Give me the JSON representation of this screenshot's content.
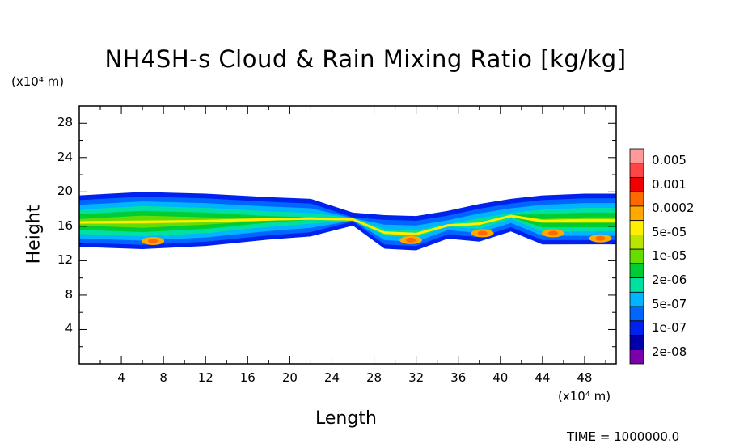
{
  "chart_data": {
    "type": "heatmap",
    "title": "NH4SH-s Cloud & Rain Mixing Ratio [kg/kg]",
    "xlabel": "Length",
    "ylabel": "Height",
    "x_unit": "(x10⁴ m)",
    "y_unit": "(x10⁴ m)",
    "xlim": [
      0,
      51
    ],
    "ylim": [
      0,
      30
    ],
    "x_ticks": [
      "4",
      "8",
      "12",
      "16",
      "20",
      "24",
      "28",
      "32",
      "36",
      "40",
      "44",
      "48"
    ],
    "y_ticks": [
      "4",
      "8",
      "12",
      "16",
      "20",
      "24",
      "28"
    ],
    "x_tick_values": [
      4,
      8,
      12,
      16,
      20,
      24,
      28,
      32,
      36,
      40,
      44,
      48
    ],
    "y_tick_values": [
      4,
      8,
      12,
      16,
      20,
      24,
      28
    ],
    "colorbar": {
      "labels": [
        "0.005",
        "0.001",
        "0.0002",
        "5e-05",
        "1e-05",
        "2e-06",
        "5e-07",
        "1e-07",
        "2e-08"
      ],
      "colors": [
        "#ff9a9a",
        "#ff4545",
        "#f00000",
        "#ff6a00",
        "#ffa800",
        "#ffee00",
        "#b8e600",
        "#66dd00",
        "#00cc33",
        "#00e0a0",
        "#00b4ff",
        "#0066ff",
        "#0022ee",
        "#0000aa",
        "#7a00aa"
      ]
    },
    "cloud_band": {
      "description_values": [
        {
          "x": 0,
          "bottom": 13.3,
          "top": 19.6
        },
        {
          "x": 6,
          "bottom": 13.0,
          "top": 20.0
        },
        {
          "x": 12,
          "bottom": 13.4,
          "top": 19.8
        },
        {
          "x": 18,
          "bottom": 14.2,
          "top": 19.4
        },
        {
          "x": 22,
          "bottom": 14.6,
          "top": 19.2
        },
        {
          "x": 26,
          "bottom": 16.0,
          "top": 17.6
        },
        {
          "x": 29,
          "bottom": 13.2,
          "top": 17.3
        },
        {
          "x": 32,
          "bottom": 13.0,
          "top": 17.2
        },
        {
          "x": 35,
          "bottom": 14.4,
          "top": 17.8
        },
        {
          "x": 38,
          "bottom": 14.0,
          "top": 18.6
        },
        {
          "x": 41,
          "bottom": 15.2,
          "top": 19.2
        },
        {
          "x": 44,
          "bottom": 13.6,
          "top": 19.6
        },
        {
          "x": 48,
          "bottom": 13.6,
          "top": 19.8
        },
        {
          "x": 51,
          "bottom": 13.6,
          "top": 19.8
        }
      ]
    }
  },
  "time_label": "TIME = 1000000.0"
}
